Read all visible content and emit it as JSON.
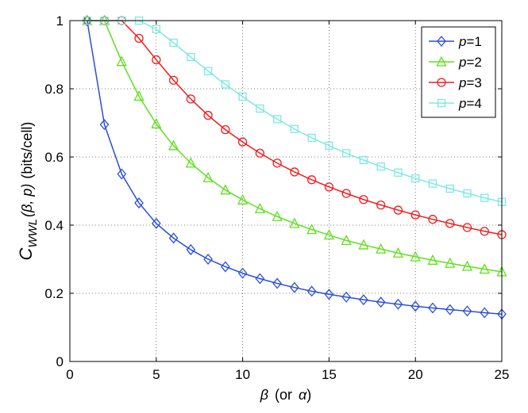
{
  "chart_data": {
    "type": "line",
    "title": "",
    "xlabel": "β (or α)",
    "ylabel": "C_WWL(β, p) (bits/cell)",
    "ylabel_parts": {
      "main": "C",
      "subscript": "WWL",
      "args": "(β, p)",
      "units": "(bits/cell)"
    },
    "xlabel_parts": {
      "symbol": "β",
      "rest": "(or",
      "symbol2": "α",
      "close": ")"
    },
    "xlim": [
      0,
      25
    ],
    "ylim": [
      0,
      1
    ],
    "xticks": [
      0,
      5,
      10,
      15,
      20,
      25
    ],
    "yticks": [
      0,
      0.2,
      0.4,
      0.6,
      0.8,
      1
    ],
    "xtick_labels": [
      "0",
      "5",
      "10",
      "15",
      "20",
      "25"
    ],
    "ytick_labels": [
      "0",
      "0.2",
      "0.4",
      "0.6",
      "0.8",
      "1"
    ],
    "grid": true,
    "legend_position": "top-right",
    "x": [
      1,
      2,
      3,
      4,
      5,
      6,
      7,
      8,
      9,
      10,
      11,
      12,
      13,
      14,
      15,
      16,
      17,
      18,
      19,
      20,
      21,
      22,
      23,
      24,
      25
    ],
    "series": [
      {
        "name": "p=1",
        "legend_var": "p",
        "legend_val": "=1",
        "color": "#2b4fd6",
        "marker": "diamond",
        "values": [
          1.0,
          0.695,
          0.55,
          0.465,
          0.405,
          0.362,
          0.328,
          0.3,
          0.278,
          0.259,
          0.243,
          0.229,
          0.217,
          0.206,
          0.197,
          0.189,
          0.181,
          0.174,
          0.168,
          0.162,
          0.157,
          0.152,
          0.148,
          0.143,
          0.139
        ]
      },
      {
        "name": "p=2",
        "legend_var": "p",
        "legend_val": "=2",
        "color": "#5ee01e",
        "marker": "triangle",
        "values": [
          1.0,
          1.0,
          0.88,
          0.778,
          0.697,
          0.633,
          0.582,
          0.539,
          0.503,
          0.474,
          0.448,
          0.425,
          0.405,
          0.387,
          0.371,
          0.355,
          0.342,
          0.33,
          0.318,
          0.307,
          0.297,
          0.288,
          0.279,
          0.271,
          0.263
        ]
      },
      {
        "name": "p=3",
        "legend_var": "p",
        "legend_val": "=3",
        "color": "#f01c1c",
        "marker": "circle",
        "values": [
          1.0,
          1.0,
          1.0,
          0.948,
          0.885,
          0.825,
          0.77,
          0.722,
          0.68,
          0.644,
          0.611,
          0.582,
          0.556,
          0.533,
          0.512,
          0.493,
          0.475,
          0.459,
          0.444,
          0.43,
          0.417,
          0.405,
          0.393,
          0.382,
          0.372
        ]
      },
      {
        "name": "p=4",
        "legend_var": "p",
        "legend_val": "=4",
        "color": "#7ee8e2",
        "marker": "square",
        "values": [
          1.0,
          1.0,
          1.0,
          1.0,
          0.975,
          0.935,
          0.893,
          0.852,
          0.813,
          0.777,
          0.742,
          0.711,
          0.682,
          0.656,
          0.633,
          0.611,
          0.591,
          0.572,
          0.554,
          0.537,
          0.522,
          0.507,
          0.493,
          0.48,
          0.468
        ]
      }
    ]
  }
}
